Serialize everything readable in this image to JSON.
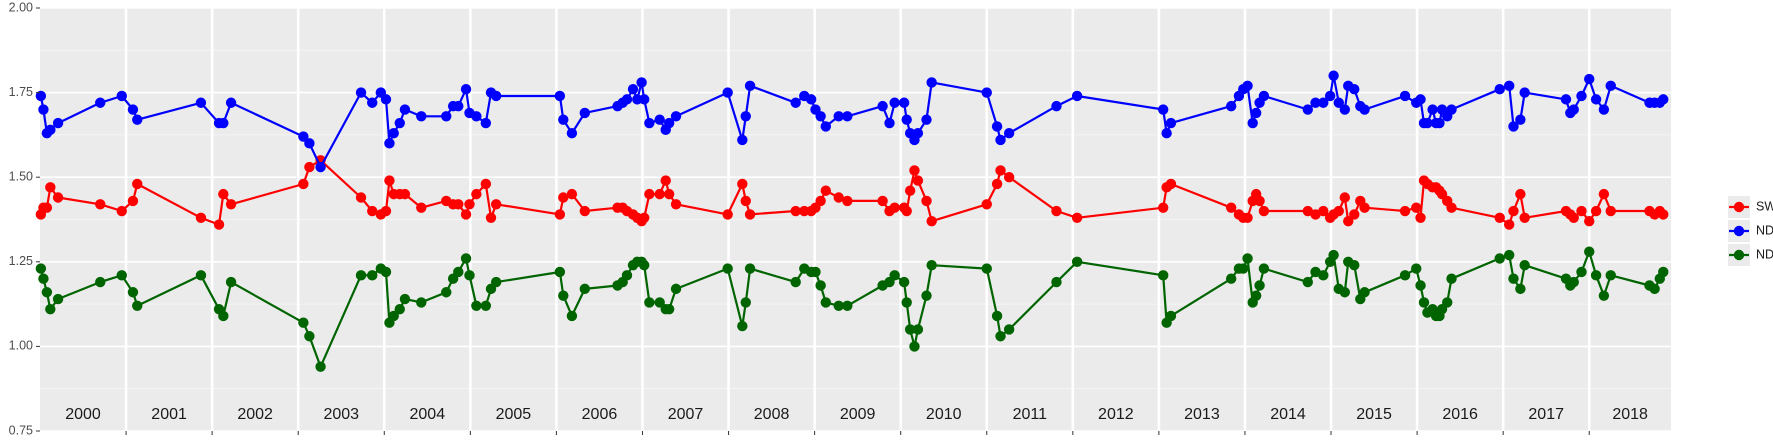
{
  "chart_data": {
    "type": "line",
    "year_labels": [
      "2000",
      "2001",
      "2002",
      "2003",
      "2004",
      "2005",
      "2006",
      "2007",
      "2008",
      "2009",
      "2010",
      "2011",
      "2012",
      "2013",
      "2014",
      "2015",
      "2016",
      "2017",
      "2018"
    ],
    "xlim": [
      2000,
      2018.95
    ],
    "xticks": [
      2001,
      2002,
      2003,
      2004,
      2005,
      2006,
      2007,
      2008,
      2009,
      2010,
      2011,
      2012,
      2013,
      2014,
      2015,
      2016,
      2017,
      2018
    ],
    "ylim": [
      0.75,
      2.0
    ],
    "yticks": [
      {
        "value": 0.75,
        "label": "0.75"
      },
      {
        "value": 1.0,
        "label": "1.00"
      },
      {
        "value": 1.25,
        "label": "1.25"
      },
      {
        "value": 1.5,
        "label": "1.50"
      },
      {
        "value": 1.75,
        "label": "1.75"
      },
      {
        "value": 2.0,
        "label": "2.00"
      }
    ],
    "grid": true,
    "legend": "right",
    "x": [
      2000.01,
      2000.04,
      2000.08,
      2000.12,
      2000.21,
      2000.7,
      2000.95,
      2001.08,
      2001.13,
      2001.87,
      2002.08,
      2002.13,
      2002.22,
      2003.06,
      2003.13,
      2003.26,
      2003.73,
      2003.86,
      2003.96,
      2004.02,
      2004.06,
      2004.11,
      2004.18,
      2004.24,
      2004.43,
      2004.72,
      2004.8,
      2004.86,
      2004.95,
      2004.99,
      2005.07,
      2005.18,
      2005.24,
      2005.3,
      2006.04,
      2006.08,
      2006.18,
      2006.33,
      2006.71,
      2006.77,
      2006.82,
      2006.89,
      2006.94,
      2006.99,
      2007.02,
      2007.08,
      2007.2,
      2007.27,
      2007.31,
      2007.39,
      2007.99,
      2008.16,
      2008.2,
      2008.25,
      2008.78,
      2008.88,
      2008.96,
      2009.01,
      2009.07,
      2009.13,
      2009.28,
      2009.38,
      2009.79,
      2009.87,
      2009.93,
      2010.04,
      2010.07,
      2010.11,
      2010.16,
      2010.2,
      2010.3,
      2010.36,
      2011.0,
      2011.12,
      2011.16,
      2011.26,
      2011.81,
      2012.05,
      2013.05,
      2013.09,
      2013.14,
      2013.84,
      2013.93,
      2013.98,
      2014.03,
      2014.09,
      2014.13,
      2014.17,
      2014.22,
      2014.73,
      2014.82,
      2014.91,
      2014.99,
      2015.03,
      2015.09,
      2015.16,
      2015.2,
      2015.27,
      2015.34,
      2015.39,
      2015.86,
      2015.99,
      2016.04,
      2016.08,
      2016.12,
      2016.18,
      2016.22,
      2016.26,
      2016.29,
      2016.35,
      2016.4,
      2016.96,
      2017.07,
      2017.12,
      2017.2,
      2017.25,
      2017.73,
      2017.78,
      2017.82,
      2017.91,
      2018.0,
      2018.08,
      2018.17,
      2018.25,
      2018.7,
      2018.76,
      2018.82,
      2018.86
    ],
    "series": [
      {
        "name": "SWIR",
        "color": "#ff0000",
        "values": [
          1.39,
          1.41,
          1.41,
          1.47,
          1.44,
          1.42,
          1.4,
          1.43,
          1.48,
          1.38,
          1.36,
          1.45,
          1.42,
          1.48,
          1.53,
          1.55,
          1.44,
          1.4,
          1.39,
          1.4,
          1.49,
          1.45,
          1.45,
          1.45,
          1.41,
          1.43,
          1.42,
          1.42,
          1.39,
          1.42,
          1.45,
          1.48,
          1.38,
          1.42,
          1.39,
          1.44,
          1.45,
          1.4,
          1.41,
          1.41,
          1.4,
          1.39,
          1.38,
          1.37,
          1.38,
          1.45,
          1.45,
          1.49,
          1.45,
          1.42,
          1.39,
          1.48,
          1.43,
          1.39,
          1.4,
          1.4,
          1.4,
          1.41,
          1.43,
          1.46,
          1.44,
          1.43,
          1.43,
          1.4,
          1.41,
          1.41,
          1.4,
          1.46,
          1.52,
          1.49,
          1.43,
          1.37,
          1.42,
          1.48,
          1.52,
          1.5,
          1.4,
          1.38,
          1.41,
          1.47,
          1.48,
          1.41,
          1.39,
          1.38,
          1.38,
          1.43,
          1.45,
          1.43,
          1.4,
          1.4,
          1.39,
          1.4,
          1.38,
          1.39,
          1.4,
          1.44,
          1.37,
          1.39,
          1.43,
          1.41,
          1.4,
          1.41,
          1.38,
          1.49,
          1.48,
          1.47,
          1.47,
          1.46,
          1.45,
          1.43,
          1.41,
          1.38,
          1.36,
          1.4,
          1.45,
          1.38,
          1.4,
          1.39,
          1.38,
          1.4,
          1.37,
          1.4,
          1.45,
          1.4,
          1.4,
          1.39,
          1.4,
          1.39
        ]
      },
      {
        "name": "NDVI",
        "color": "#0000ff",
        "values": [
          1.74,
          1.7,
          1.63,
          1.64,
          1.66,
          1.72,
          1.74,
          1.7,
          1.67,
          1.72,
          1.66,
          1.66,
          1.72,
          1.62,
          1.6,
          1.53,
          1.75,
          1.72,
          1.75,
          1.73,
          1.6,
          1.63,
          1.66,
          1.7,
          1.68,
          1.68,
          1.71,
          1.71,
          1.76,
          1.69,
          1.68,
          1.66,
          1.75,
          1.74,
          1.74,
          1.67,
          1.63,
          1.69,
          1.71,
          1.72,
          1.73,
          1.76,
          1.73,
          1.78,
          1.73,
          1.66,
          1.67,
          1.64,
          1.66,
          1.68,
          1.75,
          1.61,
          1.68,
          1.77,
          1.72,
          1.74,
          1.73,
          1.7,
          1.68,
          1.65,
          1.68,
          1.68,
          1.71,
          1.66,
          1.72,
          1.72,
          1.67,
          1.63,
          1.61,
          1.63,
          1.67,
          1.78,
          1.75,
          1.65,
          1.61,
          1.63,
          1.71,
          1.74,
          1.7,
          1.63,
          1.66,
          1.71,
          1.74,
          1.76,
          1.77,
          1.66,
          1.69,
          1.72,
          1.74,
          1.7,
          1.72,
          1.72,
          1.74,
          1.8,
          1.72,
          1.7,
          1.77,
          1.76,
          1.71,
          1.7,
          1.74,
          1.72,
          1.73,
          1.66,
          1.66,
          1.7,
          1.66,
          1.66,
          1.7,
          1.68,
          1.7,
          1.76,
          1.77,
          1.65,
          1.67,
          1.75,
          1.73,
          1.69,
          1.7,
          1.74,
          1.79,
          1.73,
          1.7,
          1.77,
          1.72,
          1.72,
          1.72,
          1.73
        ]
      },
      {
        "name": "NDWI",
        "color": "#006400",
        "values": [
          1.23,
          1.2,
          1.16,
          1.11,
          1.14,
          1.19,
          1.21,
          1.16,
          1.12,
          1.21,
          1.11,
          1.09,
          1.19,
          1.07,
          1.03,
          0.94,
          1.21,
          1.21,
          1.23,
          1.22,
          1.07,
          1.09,
          1.11,
          1.14,
          1.13,
          1.16,
          1.2,
          1.22,
          1.26,
          1.21,
          1.12,
          1.12,
          1.17,
          1.19,
          1.22,
          1.15,
          1.09,
          1.17,
          1.18,
          1.19,
          1.21,
          1.24,
          1.25,
          1.25,
          1.24,
          1.13,
          1.13,
          1.11,
          1.11,
          1.17,
          1.23,
          1.06,
          1.13,
          1.23,
          1.19,
          1.23,
          1.22,
          1.22,
          1.18,
          1.13,
          1.12,
          1.12,
          1.18,
          1.19,
          1.21,
          1.19,
          1.13,
          1.05,
          1.0,
          1.05,
          1.15,
          1.24,
          1.23,
          1.09,
          1.03,
          1.05,
          1.19,
          1.25,
          1.21,
          1.07,
          1.09,
          1.2,
          1.23,
          1.23,
          1.26,
          1.13,
          1.15,
          1.18,
          1.23,
          1.19,
          1.22,
          1.21,
          1.25,
          1.27,
          1.17,
          1.16,
          1.25,
          1.24,
          1.14,
          1.16,
          1.21,
          1.23,
          1.18,
          1.13,
          1.1,
          1.11,
          1.09,
          1.09,
          1.11,
          1.13,
          1.2,
          1.26,
          1.27,
          1.2,
          1.17,
          1.24,
          1.2,
          1.18,
          1.19,
          1.22,
          1.28,
          1.21,
          1.15,
          1.21,
          1.18,
          1.17,
          1.2,
          1.22
        ]
      }
    ]
  }
}
